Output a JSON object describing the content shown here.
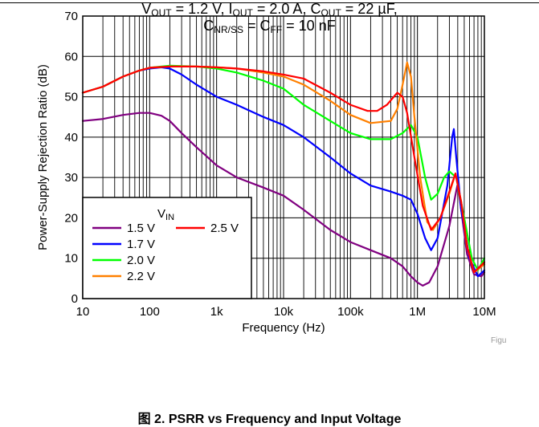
{
  "chart_data": {
    "type": "line",
    "title": "",
    "xlabel": "Frequency (Hz)",
    "ylabel": "Power-Supply Rejection Ratio (dB)",
    "x_scale": "log",
    "xlim": [
      10,
      10000000
    ],
    "ylim": [
      0,
      70
    ],
    "x_ticks": [
      10,
      100,
      1000,
      10000,
      100000,
      1000000,
      10000000
    ],
    "x_tick_labels": [
      "10",
      "100",
      "1k",
      "10k",
      "100k",
      "1M",
      "10M"
    ],
    "y_ticks": [
      0,
      10,
      20,
      30,
      40,
      50,
      60,
      70
    ],
    "y_tick_labels": [
      "0",
      "10",
      "20",
      "30",
      "40",
      "50",
      "60",
      "70"
    ],
    "grid": true,
    "legend": {
      "title_main": "V",
      "title_sub": "IN",
      "placement": "bottom-left"
    },
    "series": [
      {
        "name": "1.5 V",
        "color": "#800080",
        "points": [
          [
            10,
            44
          ],
          [
            20,
            44.5
          ],
          [
            40,
            45.5
          ],
          [
            70,
            46
          ],
          [
            100,
            46
          ],
          [
            150,
            45.3
          ],
          [
            200,
            44
          ],
          [
            300,
            41
          ],
          [
            500,
            37.5
          ],
          [
            1000,
            33
          ],
          [
            2000,
            30
          ],
          [
            5000,
            27.5
          ],
          [
            10000,
            25.5
          ],
          [
            20000,
            22
          ],
          [
            50000,
            17
          ],
          [
            100000,
            14
          ],
          [
            200000,
            12
          ],
          [
            400000,
            10
          ],
          [
            600000,
            8
          ],
          [
            800000,
            5.5
          ],
          [
            1000000,
            4
          ],
          [
            1200000,
            3.2
          ],
          [
            1500000,
            4
          ],
          [
            2000000,
            8
          ],
          [
            3000000,
            18
          ],
          [
            4000000,
            28.5
          ],
          [
            4500000,
            22
          ],
          [
            5500000,
            11
          ],
          [
            7000000,
            6
          ],
          [
            9000000,
            5.5
          ],
          [
            10000000,
            6.5
          ]
        ]
      },
      {
        "name": "1.7 V",
        "color": "#0000ff",
        "points": [
          [
            10,
            51
          ],
          [
            20,
            52.5
          ],
          [
            40,
            55
          ],
          [
            70,
            56.5
          ],
          [
            100,
            57
          ],
          [
            150,
            57.3
          ],
          [
            200,
            57
          ],
          [
            300,
            55.5
          ],
          [
            500,
            53
          ],
          [
            1000,
            50
          ],
          [
            2000,
            48
          ],
          [
            5000,
            45
          ],
          [
            10000,
            43
          ],
          [
            20000,
            40
          ],
          [
            50000,
            35
          ],
          [
            100000,
            31
          ],
          [
            200000,
            28
          ],
          [
            400000,
            26.5
          ],
          [
            600000,
            25.5
          ],
          [
            800000,
            24.5
          ],
          [
            1000000,
            21
          ],
          [
            1300000,
            15
          ],
          [
            1600000,
            12
          ],
          [
            2000000,
            15
          ],
          [
            2800000,
            28
          ],
          [
            3300000,
            40
          ],
          [
            3500000,
            42
          ],
          [
            3800000,
            35
          ],
          [
            4500000,
            22
          ],
          [
            6000000,
            10
          ],
          [
            8000000,
            5.5
          ],
          [
            10000000,
            7
          ]
        ]
      },
      {
        "name": "2.0 V",
        "color": "#00ff00",
        "points": [
          [
            10,
            51
          ],
          [
            20,
            52.5
          ],
          [
            40,
            55
          ],
          [
            70,
            56.5
          ],
          [
            100,
            57.2
          ],
          [
            200,
            57.7
          ],
          [
            500,
            57.5
          ],
          [
            1000,
            57
          ],
          [
            2000,
            56
          ],
          [
            5000,
            54
          ],
          [
            10000,
            52
          ],
          [
            20000,
            48
          ],
          [
            50000,
            44
          ],
          [
            100000,
            41
          ],
          [
            200000,
            39.5
          ],
          [
            400000,
            39.5
          ],
          [
            600000,
            41
          ],
          [
            800000,
            43
          ],
          [
            1000000,
            40
          ],
          [
            1300000,
            30
          ],
          [
            1600000,
            24.5
          ],
          [
            2000000,
            26
          ],
          [
            2500000,
            30
          ],
          [
            3000000,
            31.5
          ],
          [
            3800000,
            30
          ],
          [
            5000000,
            20
          ],
          [
            6500000,
            10
          ],
          [
            8000000,
            7
          ],
          [
            10000000,
            10
          ]
        ]
      },
      {
        "name": "2.2 V",
        "color": "#ff8000",
        "points": [
          [
            10,
            51
          ],
          [
            20,
            52.5
          ],
          [
            40,
            55
          ],
          [
            70,
            56.5
          ],
          [
            100,
            57.2
          ],
          [
            200,
            57.5
          ],
          [
            500,
            57.5
          ],
          [
            1000,
            57.3
          ],
          [
            2000,
            57
          ],
          [
            5000,
            56
          ],
          [
            10000,
            55
          ],
          [
            20000,
            53
          ],
          [
            50000,
            49
          ],
          [
            100000,
            45.5
          ],
          [
            200000,
            43.5
          ],
          [
            400000,
            44
          ],
          [
            500000,
            47
          ],
          [
            600000,
            53
          ],
          [
            700000,
            58.5
          ],
          [
            800000,
            55
          ],
          [
            900000,
            45
          ],
          [
            1100000,
            30
          ],
          [
            1400000,
            19
          ],
          [
            1700000,
            17
          ],
          [
            2200000,
            20
          ],
          [
            3000000,
            26
          ],
          [
            3700000,
            31
          ],
          [
            4500000,
            24
          ],
          [
            5500000,
            13
          ],
          [
            7000000,
            6.5
          ],
          [
            10000000,
            8.5
          ]
        ]
      },
      {
        "name": "2.5 V",
        "color": "#ff0000",
        "points": [
          [
            10,
            51
          ],
          [
            20,
            52.5
          ],
          [
            40,
            55
          ],
          [
            70,
            56.5
          ],
          [
            100,
            57.2
          ],
          [
            200,
            57.5
          ],
          [
            500,
            57.5
          ],
          [
            1000,
            57.3
          ],
          [
            2000,
            57
          ],
          [
            5000,
            56.3
          ],
          [
            10000,
            55.5
          ],
          [
            20000,
            54.5
          ],
          [
            50000,
            51
          ],
          [
            100000,
            48
          ],
          [
            180000,
            46.5
          ],
          [
            250000,
            46.5
          ],
          [
            350000,
            48
          ],
          [
            500000,
            51
          ],
          [
            600000,
            50
          ],
          [
            700000,
            46
          ],
          [
            900000,
            35
          ],
          [
            1200000,
            23
          ],
          [
            1600000,
            17
          ],
          [
            2200000,
            20
          ],
          [
            3000000,
            26.5
          ],
          [
            3700000,
            31
          ],
          [
            4500000,
            24
          ],
          [
            5500000,
            13
          ],
          [
            7000000,
            6.5
          ],
          [
            10000000,
            9
          ]
        ]
      }
    ]
  },
  "figure_tag": "Figu",
  "conditions": {
    "line1": {
      "v": "V",
      "v_sub": "OUT",
      "v_val": " = 1.2 V, ",
      "i": "I",
      "i_sub": "OUT",
      "i_val": " = 2.0 A, ",
      "c": "C",
      "c_sub": "OUT",
      "c_val": " = 22 µF,"
    },
    "line2": {
      "c1": "C",
      "c1_sub": "NR/SS",
      "eq": " = ",
      "c2": "C",
      "c2_sub": "FF",
      "c2_val": " = 10 nF"
    }
  },
  "caption": "图 2. PSRR vs Frequency and Input Voltage"
}
